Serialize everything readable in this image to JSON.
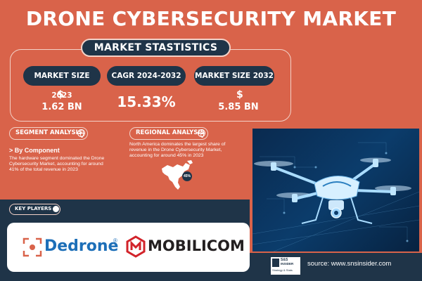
{
  "title": "DRONE CYBERSECURITY MARKET",
  "stats_heading": "MARKET STASTISTICS",
  "stats": [
    {
      "label": "MARKET SIZE 2023",
      "currency": "$",
      "value": "1.62 BN"
    },
    {
      "label": "CAGR 2024-2032",
      "value": "15.33%"
    },
    {
      "label": "MARKET SIZE 2032",
      "currency": "$",
      "value": "5.85 BN"
    }
  ],
  "segment": {
    "title": "SEGMENT ANALYSIS",
    "subtitle": "> By Component",
    "text_lines": [
      "The hardware segment dominated the Drone",
      "Cybersecurity Market, accounting for around",
      "41% of the total revenue in 2023"
    ]
  },
  "regional": {
    "title": "REGIONAL ANALYSIS",
    "text_lines": [
      "North America dominates the largest share of",
      "revenue in the Drone Cybersecurity Market,",
      "accounting for around 45% in 2023"
    ],
    "percent": "45%"
  },
  "key_players": {
    "title": "KEY PLAYERS",
    "logos": [
      "Dedrone",
      "MOBILICOM"
    ]
  },
  "brand_logo_text": [
    "S&S",
    "INSIDER",
    "Strategy & Stats"
  ],
  "source": "source: www.snsinsider.com",
  "colors": {
    "background": "#d9634a",
    "navy": "#1f3448",
    "dedrone_blue": "#1d6fb8",
    "mobilicom_red": "#d2232a"
  }
}
